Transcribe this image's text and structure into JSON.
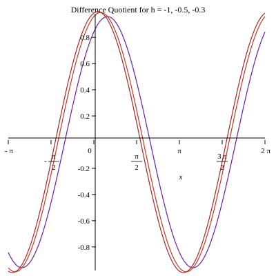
{
  "chart_data": {
    "type": "line",
    "title": "Difference Quotient for h = -1, -0.5, -0.3",
    "xlabel": "x",
    "ylabel": "",
    "xlim": [
      -3.1416,
      6.2832
    ],
    "ylim": [
      -0.98,
      0.98
    ],
    "grid": false,
    "legend": "none",
    "function": "(sin(x + h) - sin(x)) / h",
    "x_ticks": [
      {
        "value": -3.1416,
        "label": "- π"
      },
      {
        "value": -1.5708,
        "label": "-",
        "frac": {
          "num": "π",
          "den": "2"
        }
      },
      {
        "value": 0,
        "label": "0"
      },
      {
        "value": 1.5708,
        "label": "",
        "frac": {
          "num": "π",
          "den": "2"
        }
      },
      {
        "value": 3.1416,
        "label": "π"
      },
      {
        "value": 4.7124,
        "label": "",
        "frac": {
          "num": "3 π",
          "den": "2"
        }
      },
      {
        "value": 6.2832,
        "label": "2 π"
      }
    ],
    "y_ticks": [
      {
        "value": 0.8,
        "label": "0.8"
      },
      {
        "value": 0.6,
        "label": "0.6"
      },
      {
        "value": 0.4,
        "label": "0.4"
      },
      {
        "value": 0.2,
        "label": "0.2"
      },
      {
        "value": -0.2,
        "label": "-0.2"
      },
      {
        "value": -0.4,
        "label": "-0.4"
      },
      {
        "value": -0.6,
        "label": "-0.6"
      },
      {
        "value": -0.8,
        "label": "-0.8"
      }
    ],
    "series": [
      {
        "h": -1.0,
        "color": "#6a1ba6"
      },
      {
        "h": -0.5,
        "color": "#c0392b"
      },
      {
        "h": -0.3,
        "color": "#a8271f"
      }
    ]
  }
}
